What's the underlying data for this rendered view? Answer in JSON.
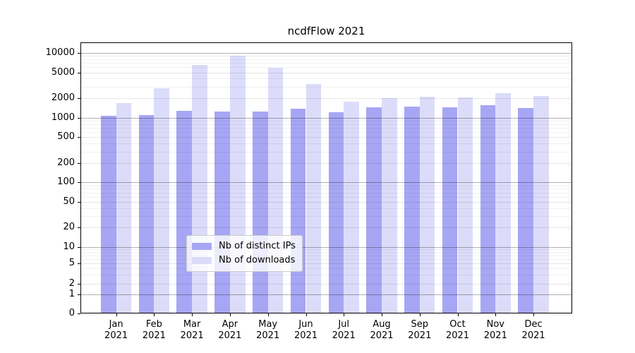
{
  "title": "ncdfFlow 2021",
  "chart_data": {
    "type": "bar",
    "title": "ncdfFlow 2021",
    "categories": [
      "Jan 2021",
      "Feb 2021",
      "Mar 2021",
      "Apr 2021",
      "May 2021",
      "Jun 2021",
      "Jul 2021",
      "Aug 2021",
      "Sep 2021",
      "Oct 2021",
      "Nov 2021",
      "Dec 2021"
    ],
    "series": [
      {
        "name": "Nb of distinct IPs",
        "color": "#a6a6f4",
        "values": [
          1070,
          1100,
          1280,
          1240,
          1250,
          1360,
          1210,
          1440,
          1470,
          1440,
          1540,
          1400
        ]
      },
      {
        "name": "Nb of downloads",
        "color": "#dcdcfa",
        "values": [
          1680,
          2840,
          6460,
          9100,
          5890,
          3300,
          1750,
          2000,
          2080,
          2030,
          2360,
          2150
        ]
      }
    ],
    "y_scale": "log-like (compressed below 10, includes 0)",
    "y_ticks": [
      0,
      1,
      2,
      5,
      10,
      20,
      50,
      100,
      200,
      500,
      1000,
      2000,
      5000,
      10000
    ],
    "y_top_estimate": 14500,
    "grid": true,
    "legend_position": "lower center",
    "axis_color": "#000000"
  }
}
